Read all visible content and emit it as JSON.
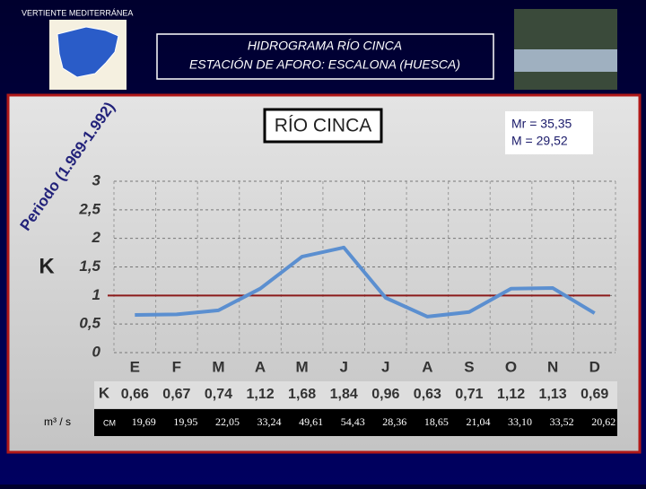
{
  "header": {
    "region": "VERTIENTE MEDITERRÁNEA",
    "title_lines": [
      "HIDROGRAMA RÍO CINCA",
      "ESTACIÓN DE AFORO: ESCALONA (HUESCA)"
    ]
  },
  "chart_data": {
    "type": "line",
    "title": "RÍO CINCA",
    "period": "Periodo (1.969-1.992)",
    "annotations": [
      "Mr = 35,35",
      "M = 29,52"
    ],
    "y_label": "K",
    "categories": [
      "E",
      "F",
      "M",
      "A",
      "M",
      "J",
      "J",
      "A",
      "S",
      "O",
      "N",
      "D"
    ],
    "series": [
      {
        "name": "K",
        "color": "#5b8fd0",
        "values": [
          0.66,
          0.67,
          0.74,
          1.12,
          1.68,
          1.84,
          0.96,
          0.63,
          0.71,
          1.12,
          1.13,
          0.69
        ],
        "value_labels": [
          "0,66",
          "0,67",
          "0,74",
          "1,12",
          "1,68",
          "1,84",
          "0,96",
          "0,63",
          "0,71",
          "1,12",
          "1,13",
          "0,69"
        ]
      }
    ],
    "reference_line": 1,
    "reference_color": "#8b1a1a",
    "ylim": [
      0,
      3
    ],
    "yticks": [
      0,
      {
        "value": 0.5,
        "label": "0,5"
      },
      1,
      {
        "value": 1.5,
        "label": "1,5"
      },
      2,
      {
        "value": 2.5,
        "label": "2,5"
      },
      3
    ],
    "grid": true,
    "flows": {
      "label": "m³ / s",
      "unit": "CM",
      "values": [
        19.69,
        19.95,
        22.05,
        33.24,
        49.61,
        54.43,
        28.36,
        18.65,
        21.04,
        33.1,
        33.52,
        20.62
      ],
      "value_labels": [
        "19,69",
        "19,95",
        "22,05",
        "33,24",
        "49,61",
        "54,43",
        "28,36",
        "18,65",
        "21,04",
        "33,10",
        "33,52",
        "20,62"
      ]
    }
  }
}
